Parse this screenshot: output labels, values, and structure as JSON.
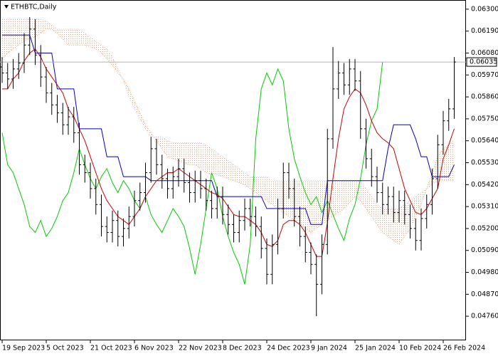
{
  "chart_data": {
    "type": "ohlc",
    "title": "ETHBTC,Daily",
    "color": "#000000",
    "grid": false,
    "categories": [
      "19 Sep 2023",
      null,
      null,
      null,
      null,
      null,
      null,
      null,
      "5 Oct 2023",
      null,
      null,
      null,
      null,
      null,
      null,
      null,
      "21 Oct 2023",
      null,
      null,
      null,
      null,
      null,
      null,
      null,
      "6 Nov 2023",
      null,
      null,
      null,
      null,
      null,
      null,
      null,
      "22 Nov 2023",
      null,
      null,
      null,
      null,
      null,
      null,
      null,
      "8 Dec 2023",
      null,
      null,
      null,
      null,
      null,
      null,
      null,
      "24 Dec 2023",
      null,
      null,
      null,
      null,
      null,
      null,
      null,
      "9 Jan 2024",
      null,
      null,
      null,
      null,
      null,
      null,
      null,
      "25 Jan 2024",
      null,
      null,
      null,
      null,
      null,
      null,
      null,
      "10 Feb 2024",
      null,
      null,
      null,
      null,
      null,
      null,
      null,
      "26 Feb 2024",
      null,
      null
    ],
    "open": [
      0.0601,
      0.0598,
      0.0595,
      0.06,
      0.0603,
      0.0612,
      0.062,
      0.0607,
      0.0596,
      0.0588,
      0.0582,
      0.0578,
      0.0572,
      0.0576,
      0.0568,
      0.0552,
      0.0548,
      0.054,
      0.0532,
      0.0521,
      0.0518,
      0.0524,
      0.0516,
      0.052,
      0.0526,
      0.0534,
      0.0538,
      0.0548,
      0.056,
      0.0552,
      0.0545,
      0.054,
      0.0546,
      0.055,
      0.0543,
      0.0538,
      0.0544,
      0.054,
      0.0534,
      0.053,
      0.0536,
      0.0527,
      0.0522,
      0.0518,
      0.0524,
      0.053,
      0.0526,
      0.0521,
      0.051,
      0.0497,
      0.0512,
      0.053,
      0.0548,
      0.054,
      0.0526,
      0.0516,
      0.0508,
      0.0502,
      0.0492,
      0.0512,
      0.0565,
      0.059,
      0.0598,
      0.0592,
      0.06,
      0.0594,
      0.057,
      0.0555,
      0.0546,
      0.0538,
      0.0532,
      0.0536,
      0.0528,
      0.0534,
      0.0527,
      0.052,
      0.0514,
      0.0525,
      0.0532,
      0.0545,
      0.0562,
      0.0574,
      0.058
    ],
    "high": [
      0.0606,
      0.0603,
      0.0605,
      0.0608,
      0.0618,
      0.0626,
      0.0625,
      0.0612,
      0.0601,
      0.0593,
      0.0587,
      0.0583,
      0.0581,
      0.0581,
      0.0573,
      0.0557,
      0.0553,
      0.0545,
      0.0537,
      0.0526,
      0.0529,
      0.0529,
      0.0525,
      0.0531,
      0.0539,
      0.0543,
      0.0553,
      0.0566,
      0.0565,
      0.0557,
      0.055,
      0.0551,
      0.0555,
      0.0555,
      0.0548,
      0.0549,
      0.0549,
      0.0545,
      0.0539,
      0.0541,
      0.0541,
      0.0532,
      0.0527,
      0.0529,
      0.0535,
      0.0535,
      0.0531,
      0.0526,
      0.0515,
      0.0517,
      0.0535,
      0.0553,
      0.0553,
      0.0545,
      0.0531,
      0.0521,
      0.0513,
      0.0507,
      0.0517,
      0.057,
      0.0611,
      0.0604,
      0.0603,
      0.0605,
      0.0605,
      0.0599,
      0.0575,
      0.056,
      0.0551,
      0.0543,
      0.0541,
      0.0541,
      0.0539,
      0.0539,
      0.0532,
      0.0525,
      0.053,
      0.0537,
      0.055,
      0.0567,
      0.0579,
      0.0585,
      0.0606
    ],
    "low": [
      0.0593,
      0.059,
      0.059,
      0.0595,
      0.0598,
      0.0607,
      0.0602,
      0.0591,
      0.0583,
      0.0577,
      0.0573,
      0.0567,
      0.0567,
      0.0563,
      0.0547,
      0.0543,
      0.0535,
      0.0527,
      0.0516,
      0.0513,
      0.0513,
      0.0511,
      0.0511,
      0.0515,
      0.0521,
      0.0529,
      0.0533,
      0.0543,
      0.0547,
      0.054,
      0.0535,
      0.0535,
      0.0541,
      0.0538,
      0.0533,
      0.0533,
      0.0535,
      0.0529,
      0.0525,
      0.0525,
      0.0522,
      0.0517,
      0.0513,
      0.0513,
      0.0519,
      0.0521,
      0.0516,
      0.0505,
      0.0492,
      0.0492,
      0.0507,
      0.0525,
      0.0535,
      0.0521,
      0.0511,
      0.0503,
      0.0497,
      0.0476,
      0.0487,
      0.0507,
      0.056,
      0.0585,
      0.0587,
      0.0587,
      0.0589,
      0.0565,
      0.055,
      0.0541,
      0.0533,
      0.0527,
      0.0527,
      0.0523,
      0.0523,
      0.0522,
      0.0515,
      0.0509,
      0.0509,
      0.052,
      0.0527,
      0.054,
      0.0557,
      0.0569,
      0.0575
    ],
    "close": [
      0.0598,
      0.0595,
      0.06,
      0.0603,
      0.0612,
      0.062,
      0.0607,
      0.0596,
      0.0588,
      0.0582,
      0.0578,
      0.0572,
      0.0576,
      0.0568,
      0.0552,
      0.0548,
      0.054,
      0.0532,
      0.0521,
      0.0518,
      0.0524,
      0.0516,
      0.052,
      0.0526,
      0.0534,
      0.0538,
      0.0548,
      0.056,
      0.0552,
      0.0545,
      0.054,
      0.0546,
      0.055,
      0.0543,
      0.0538,
      0.0544,
      0.054,
      0.0534,
      0.053,
      0.0536,
      0.0527,
      0.0522,
      0.0518,
      0.0524,
      0.053,
      0.0526,
      0.0521,
      0.051,
      0.0497,
      0.0512,
      0.053,
      0.0548,
      0.054,
      0.0526,
      0.0516,
      0.0508,
      0.0502,
      0.0492,
      0.0512,
      0.0565,
      0.059,
      0.0598,
      0.0592,
      0.06,
      0.0594,
      0.057,
      0.0555,
      0.0546,
      0.0538,
      0.0532,
      0.0536,
      0.0528,
      0.0534,
      0.0527,
      0.052,
      0.0514,
      0.0525,
      0.0532,
      0.0545,
      0.0562,
      0.0574,
      0.058,
      0.06035
    ],
    "tenkan": {
      "color": "#cc0000",
      "values": [
        0.059,
        0.059,
        0.0595,
        0.0598,
        0.0604,
        0.0608,
        0.061,
        0.0606,
        0.06,
        0.0596,
        0.0592,
        0.0588,
        0.058,
        0.0576,
        0.057,
        0.0564,
        0.0556,
        0.0548,
        0.054,
        0.0534,
        0.053,
        0.0526,
        0.0524,
        0.0522,
        0.0526,
        0.053,
        0.0536,
        0.054,
        0.0544,
        0.0546,
        0.0548,
        0.0548,
        0.055,
        0.0548,
        0.0546,
        0.0544,
        0.0542,
        0.054,
        0.0538,
        0.0537,
        0.0535,
        0.0531,
        0.0527,
        0.0526,
        0.0526,
        0.0524,
        0.0522,
        0.0518,
        0.0512,
        0.0511,
        0.0514,
        0.0522,
        0.0524,
        0.0524,
        0.0522,
        0.0518,
        0.0512,
        0.0506,
        0.0506,
        0.0523,
        0.0545,
        0.0565,
        0.058,
        0.0586,
        0.059,
        0.0588,
        0.0582,
        0.0574,
        0.0568,
        0.0565,
        0.0563,
        0.056,
        0.055,
        0.054,
        0.0534,
        0.0528,
        0.0527,
        0.053,
        0.0535,
        0.054,
        0.0555,
        0.0562,
        0.057
      ]
    },
    "kijun": {
      "color": "#0000c8",
      "values": [
        0.0617,
        0.0617,
        0.0617,
        0.0617,
        0.0617,
        0.0617,
        0.0608,
        0.0608,
        0.0608,
        0.0608,
        0.059,
        0.059,
        0.059,
        0.059,
        0.057,
        0.057,
        0.057,
        0.057,
        0.057,
        0.0556,
        0.0556,
        0.0556,
        0.0546,
        0.0546,
        0.0546,
        0.0546,
        0.0546,
        0.0544,
        0.0544,
        0.0544,
        0.0544,
        0.0544,
        0.0544,
        0.0544,
        0.0544,
        0.0544,
        0.0544,
        0.0544,
        0.0544,
        0.0536,
        0.0536,
        0.0536,
        0.0536,
        0.0536,
        0.0536,
        0.0536,
        0.0536,
        0.0536,
        0.053,
        0.053,
        0.053,
        0.053,
        0.053,
        0.053,
        0.053,
        0.053,
        0.0522,
        0.0522,
        0.0522,
        0.0544,
        0.0544,
        0.0544,
        0.0544,
        0.0544,
        0.0544,
        0.0544,
        0.0544,
        0.0544,
        0.0544,
        0.0544,
        0.056,
        0.0572,
        0.0572,
        0.0572,
        0.0572,
        0.0565,
        0.0556,
        0.0556,
        0.0546,
        0.0546,
        0.0546,
        0.0546,
        0.0552
      ]
    },
    "chikou": {
      "color": "#00cc00",
      "values": [
        0.0568,
        0.0552,
        0.0548,
        0.054,
        0.0532,
        0.0521,
        0.0518,
        0.0524,
        0.0516,
        0.052,
        0.0526,
        0.0534,
        0.0538,
        0.0548,
        0.056,
        0.0552,
        0.0545,
        0.054,
        0.0546,
        0.055,
        0.0543,
        0.0538,
        0.0544,
        0.054,
        0.0534,
        0.053,
        0.0536,
        0.0527,
        0.0522,
        0.0518,
        0.0524,
        0.053,
        0.0526,
        0.0521,
        0.051,
        0.0497,
        0.0512,
        0.053,
        0.0548,
        0.054,
        0.0526,
        0.0516,
        0.0508,
        0.0502,
        0.0492,
        0.0512,
        0.0565,
        0.059,
        0.0598,
        0.0592,
        0.06,
        0.0594,
        0.057,
        0.0555,
        0.0546,
        0.0538,
        0.0532,
        0.0536,
        0.0528,
        0.0534,
        0.0527,
        0.052,
        0.0514,
        0.0525,
        0.0532,
        0.0545,
        0.0562,
        0.0574,
        0.058,
        0.06035,
        null,
        null,
        null,
        null,
        null,
        null,
        null,
        null,
        null,
        null,
        null,
        null,
        null
      ]
    },
    "span_a": {
      "color": "#f4a460",
      "dash": true,
      "values": [
        0.0605,
        0.0608,
        0.061,
        0.0612,
        0.0614,
        0.0615,
        0.0616,
        0.0618,
        0.062,
        0.062,
        0.0618,
        0.0615,
        0.0612,
        0.0612,
        0.0612,
        0.0612,
        0.0611,
        0.061,
        0.0608,
        0.0605,
        0.0602,
        0.0598,
        0.0595,
        0.059,
        0.0584,
        0.0578,
        0.0572,
        0.0568,
        0.0564,
        0.056,
        0.0556,
        0.0555,
        0.0554,
        0.0553,
        0.0552,
        0.0552,
        0.055,
        0.0548,
        0.0547,
        0.0547,
        0.0546,
        0.0545,
        0.0544,
        0.0543,
        0.0542,
        0.054,
        0.0538,
        0.0536,
        0.0534,
        0.0532,
        0.053,
        0.0528,
        0.0526,
        0.0524,
        0.0522,
        0.052,
        0.0518,
        0.052,
        0.0522,
        0.0524,
        0.0526,
        0.0528,
        0.053,
        0.0533,
        0.0536,
        0.0534,
        0.053,
        0.0526,
        0.0522,
        0.0518,
        0.0516,
        0.0514,
        0.0512,
        0.0516,
        0.052,
        0.0526,
        0.0532,
        0.054,
        0.0548,
        0.0556,
        0.056,
        0.0562,
        0.0564
      ]
    },
    "span_b": {
      "color": "#d8bfd8",
      "dash": true,
      "values": [
        0.0625,
        0.0625,
        0.0625,
        0.0625,
        0.0625,
        0.0625,
        0.0625,
        0.0625,
        0.0624,
        0.0622,
        0.062,
        0.062,
        0.062,
        0.062,
        0.062,
        0.0618,
        0.0616,
        0.0614,
        0.0612,
        0.061,
        0.0606,
        0.06,
        0.0594,
        0.0586,
        0.058,
        0.0575,
        0.057,
        0.0566,
        0.0566,
        0.0566,
        0.0564,
        0.0563,
        0.0563,
        0.0563,
        0.0563,
        0.0563,
        0.0563,
        0.0562,
        0.056,
        0.0558,
        0.0556,
        0.0554,
        0.0552,
        0.055,
        0.0548,
        0.0546,
        0.0546,
        0.0546,
        0.0546,
        0.0544,
        0.0544,
        0.0544,
        0.0544,
        0.0544,
        0.0544,
        0.0544,
        0.0544,
        0.0544,
        0.0544,
        0.0544,
        0.0544,
        0.0544,
        0.0544,
        0.0544,
        0.0544,
        0.0544,
        0.054,
        0.0536,
        0.0532,
        0.053,
        0.053,
        0.053,
        0.053,
        0.0532,
        0.0534,
        0.0536,
        0.0538,
        0.054,
        0.0542,
        0.0544,
        0.0544,
        0.0544,
        0.0544
      ]
    },
    "cloud_color": "#e9a07a",
    "last_price": 0.06035,
    "ylim": [
      0.04639,
      0.06346
    ],
    "yticks": [
      {
        "value": 0.063,
        "label": "0.06300"
      },
      {
        "value": 0.0619,
        "label": "0.06190"
      },
      {
        "value": 0.0608,
        "label": "0.06080"
      },
      {
        "value": 0.0597,
        "label": "0.05970"
      },
      {
        "value": 0.0586,
        "label": "0.05860"
      },
      {
        "value": 0.0575,
        "label": "0.05750"
      },
      {
        "value": 0.0564,
        "label": "0.05640"
      },
      {
        "value": 0.0553,
        "label": "0.05530"
      },
      {
        "value": 0.0542,
        "label": "0.05420"
      },
      {
        "value": 0.0531,
        "label": "0.05310"
      },
      {
        "value": 0.052,
        "label": "0.05200"
      },
      {
        "value": 0.0509,
        "label": "0.05090"
      },
      {
        "value": 0.0498,
        "label": "0.04980"
      },
      {
        "value": 0.0487,
        "label": "0.04870"
      },
      {
        "value": 0.0476,
        "label": "0.04760"
      }
    ]
  }
}
